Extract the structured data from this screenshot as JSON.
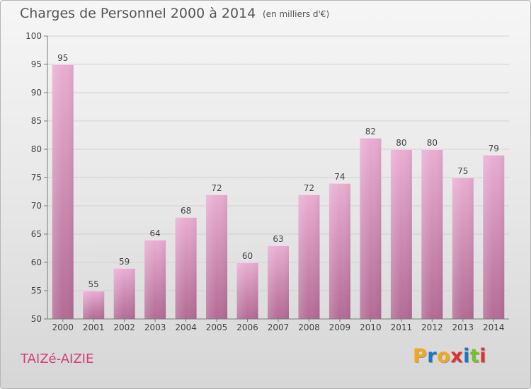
{
  "title": "Charges de Personnel 2000 à 2014",
  "unit_note": "(en milliers d'€)",
  "commune": "TAIZé-AIZIE",
  "logo": {
    "text": "Proxiti",
    "letter_colors": [
      "#f0a81c",
      "#1e74c6",
      "#f0a81c",
      "#e0312e",
      "#1e74c6",
      "#7bbf2a",
      "#e0312e"
    ]
  },
  "colors": {
    "bar_light": "#e9aed2",
    "bar_dark": "#b36b95",
    "commune": "#d0407a",
    "axis": "#7a7a7a"
  },
  "chart_data": {
    "type": "bar",
    "title": "Charges de Personnel 2000 à 2014",
    "subtitle": "(en milliers d'€)",
    "categories": [
      "2000",
      "2001",
      "2002",
      "2003",
      "2004",
      "2005",
      "2006",
      "2007",
      "2008",
      "2009",
      "2010",
      "2011",
      "2012",
      "2013",
      "2014"
    ],
    "values": [
      95,
      55,
      59,
      64,
      68,
      72,
      60,
      63,
      72,
      74,
      82,
      80,
      80,
      75,
      79
    ],
    "ylim": [
      50,
      100
    ],
    "yticks": [
      50,
      55,
      60,
      65,
      70,
      75,
      80,
      85,
      90,
      95,
      100
    ],
    "grid": true,
    "xlabel": "",
    "ylabel": ""
  }
}
